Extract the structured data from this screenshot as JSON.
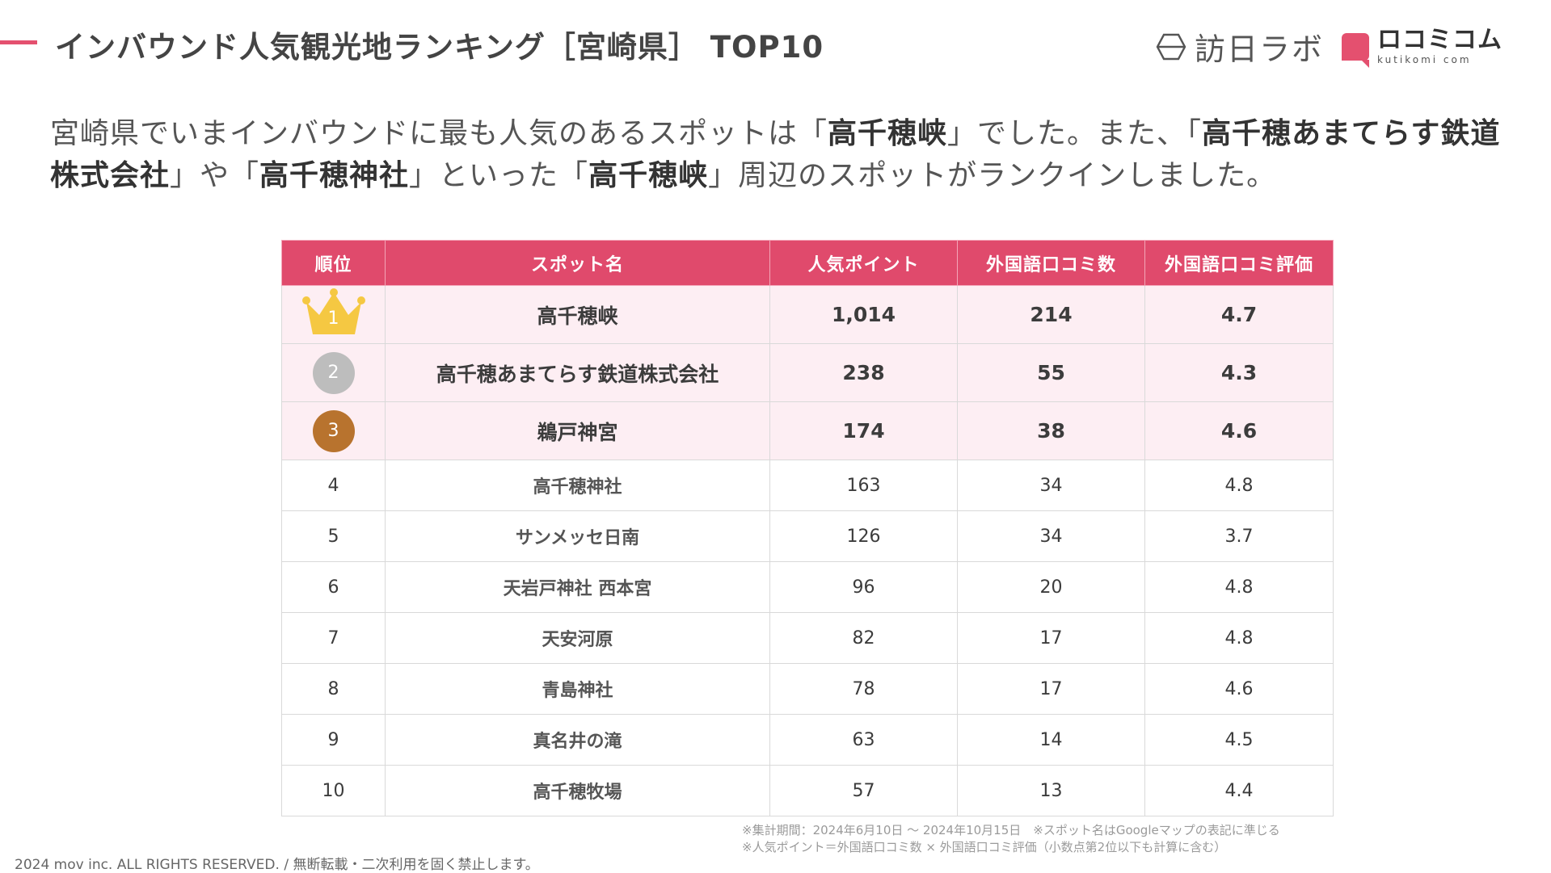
{
  "header": {
    "title": "インバウンド人気観光地ランキング［宮崎県］ TOP10",
    "logo_houlab": "訪日ラボ",
    "logo_kuchikomi": "ロコミコム",
    "logo_kuchikomi_sub": "kutikomi com",
    "accent_color": "#e4506f"
  },
  "lead": {
    "p1": "宮崎県でいまインバウンドに最も人気のあるスポットは「",
    "b1": "高千穂峡",
    "p2": "」でした。また、「",
    "b2": "高千穂あまてらす鉄道株式会社",
    "p3": "」や「",
    "b3": "高千穂神社",
    "p4": "」といった「",
    "b4": "高千穂峡",
    "p5": "」周辺のスポットがランクインしました。"
  },
  "table": {
    "headers": {
      "rank": "順位",
      "spot": "スポット名",
      "points": "人気ポイント",
      "reviews": "外国語口コミ数",
      "rating": "外国語口コミ評価"
    },
    "header_color": "#e04a6c",
    "badge_colors": {
      "gold": "#f5c842",
      "silver": "#bdbdbd",
      "bronze": "#b8732e"
    },
    "rows": [
      {
        "rank": "1",
        "spot": "高千穂峡",
        "points": "1,014",
        "reviews": "214",
        "rating": "4.7"
      },
      {
        "rank": "2",
        "spot": "高千穂あまてらす鉄道株式会社",
        "points": "238",
        "reviews": "55",
        "rating": "4.3"
      },
      {
        "rank": "3",
        "spot": "鵜戸神宮",
        "points": "174",
        "reviews": "38",
        "rating": "4.6"
      },
      {
        "rank": "4",
        "spot": "高千穂神社",
        "points": "163",
        "reviews": "34",
        "rating": "4.8"
      },
      {
        "rank": "5",
        "spot": "サンメッセ日南",
        "points": "126",
        "reviews": "34",
        "rating": "3.7"
      },
      {
        "rank": "6",
        "spot": "天岩戸神社 西本宮",
        "points": "96",
        "reviews": "20",
        "rating": "4.8"
      },
      {
        "rank": "7",
        "spot": "天安河原",
        "points": "82",
        "reviews": "17",
        "rating": "4.8"
      },
      {
        "rank": "8",
        "spot": "青島神社",
        "points": "78",
        "reviews": "17",
        "rating": "4.6"
      },
      {
        "rank": "9",
        "spot": "真名井の滝",
        "points": "63",
        "reviews": "14",
        "rating": "4.5"
      },
      {
        "rank": "10",
        "spot": "高千穂牧場",
        "points": "57",
        "reviews": "13",
        "rating": "4.4"
      }
    ]
  },
  "notes": {
    "line1": "※集計期間：2024年6月10日 〜 2024年10月15日　※スポット名はGoogleマップの表記に準じる",
    "line2": "※人気ポイント＝外国語口コミ数 × 外国語口コミ評価（小数点第2位以下も計算に含む）"
  },
  "footer": "2024 mov inc. ALL RIGHTS RESERVED. / 無断転載・二次利用を固く禁止します。"
}
